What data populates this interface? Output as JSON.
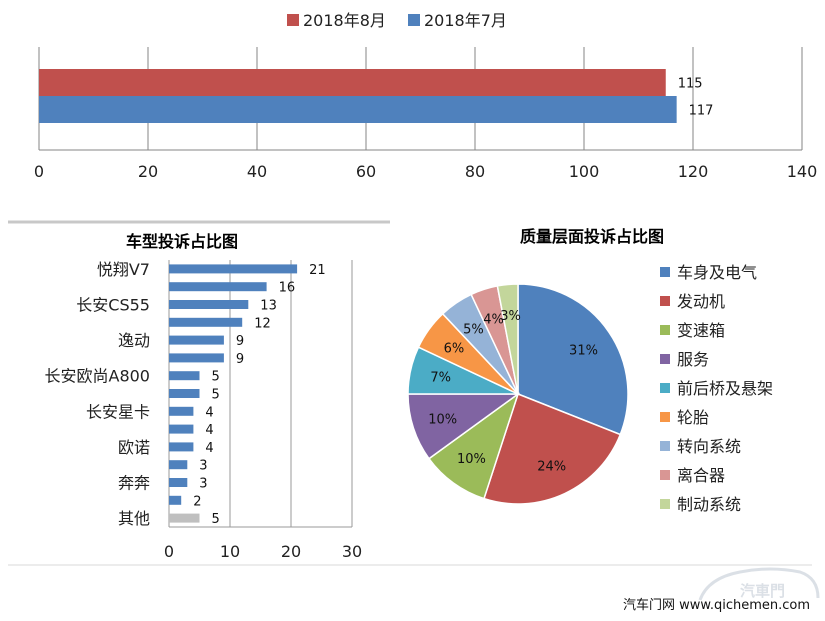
{
  "chart_data": [
    {
      "type": "bar",
      "orientation": "horizontal",
      "title": "",
      "categories": [
        ""
      ],
      "series": [
        {
          "name": "2018年8月",
          "color": "#C0504D",
          "values": [
            115
          ]
        },
        {
          "name": "2018年7月",
          "color": "#4F81BD",
          "values": [
            117
          ]
        }
      ],
      "xlim": [
        0,
        140
      ],
      "xticks": [
        "0",
        "20",
        "40",
        "60",
        "80",
        "100",
        "120",
        "140"
      ],
      "grid": true,
      "legend": "top"
    },
    {
      "type": "bar",
      "orientation": "horizontal",
      "title": "车型投诉占比图",
      "categories": [
        "悦翔V7",
        "",
        "长安CS55",
        "",
        "逸动",
        "",
        "长安欧尚A800",
        "",
        "长安星卡",
        "",
        "欧诺",
        "",
        "奔奔",
        "",
        "其他"
      ],
      "values": [
        21,
        16,
        13,
        12,
        9,
        9,
        5,
        5,
        4,
        4,
        4,
        3,
        3,
        2,
        5
      ],
      "colors": {
        "default": "#4F81BD",
        "其他": "#BFBFBF"
      },
      "xlim": [
        0,
        30
      ],
      "xticks": [
        "0",
        "10",
        "20",
        "30"
      ],
      "grid": true
    },
    {
      "type": "pie",
      "title": "质量层面投诉占比图",
      "slices": [
        {
          "name": "车身及电气",
          "value": 31,
          "label": "31%",
          "color": "#4F81BD"
        },
        {
          "name": "发动机",
          "value": 24,
          "label": "24%",
          "color": "#C0504D"
        },
        {
          "name": "变速箱",
          "value": 10,
          "label": "10%",
          "color": "#9BBB59"
        },
        {
          "name": "服务",
          "value": 10,
          "label": "10%",
          "color": "#8064A2"
        },
        {
          "name": "前后桥及悬架",
          "value": 7,
          "label": "7%",
          "color": "#4BACC6"
        },
        {
          "name": "轮胎",
          "value": 6,
          "label": "6%",
          "color": "#F79646"
        },
        {
          "name": "转向系统",
          "value": 5,
          "label": "5%",
          "color": "#95B3D7"
        },
        {
          "name": "离合器",
          "value": 4,
          "label": "4%",
          "color": "#D99694"
        },
        {
          "name": "制动系统",
          "value": 3,
          "label": "3%",
          "color": "#C3D69B"
        }
      ],
      "legend": "right"
    }
  ],
  "footer": {
    "text": "汽车门网  www.qichemen.com",
    "watermark": "汽車門"
  }
}
